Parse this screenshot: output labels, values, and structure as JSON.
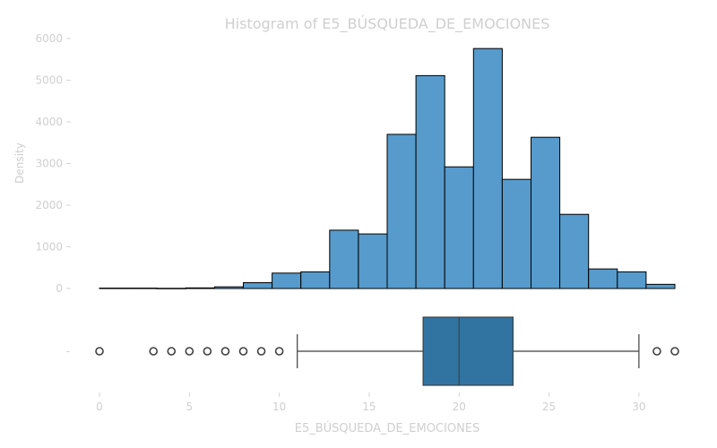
{
  "chart_data": [
    {
      "type": "bar",
      "title": "Histogram of E5_BÚSQUEDA_DE_EMOCIONES",
      "ylabel": "Density",
      "ylim": [
        0,
        6000
      ],
      "yticks": [
        0,
        1000,
        2000,
        3000,
        4000,
        5000,
        6000
      ],
      "bin_edges": [
        0,
        1.6,
        3.2,
        4.8,
        6.4,
        8.0,
        9.6,
        11.2,
        12.8,
        14.4,
        16.0,
        17.6,
        19.2,
        20.8,
        22.4,
        24.0,
        25.6,
        27.2,
        28.8,
        30.4,
        32.0
      ],
      "values": [
        10,
        10,
        5,
        15,
        40,
        140,
        370,
        400,
        1400,
        1310,
        3700,
        5110,
        2920,
        5760,
        2620,
        3630,
        1780,
        470,
        400,
        100
      ],
      "colors": {
        "bar_fill": "#569bcc",
        "bar_edge": "#000000"
      }
    },
    {
      "type": "box",
      "xlabel": "E5_BÚSQUEDA_DE_EMOCIONES",
      "xlim": [
        0,
        32
      ],
      "xticks": [
        0,
        5,
        10,
        15,
        20,
        25,
        30
      ],
      "ytick_label": "-",
      "whisker_low": 11,
      "q1": 18,
      "median": 20,
      "q3": 23,
      "whisker_high": 30,
      "outliers": [
        0,
        3,
        4,
        5,
        6,
        7,
        8,
        9,
        10,
        31,
        32
      ],
      "colors": {
        "box_fill": "#3274a1",
        "line": "#3f3f3f"
      }
    }
  ]
}
